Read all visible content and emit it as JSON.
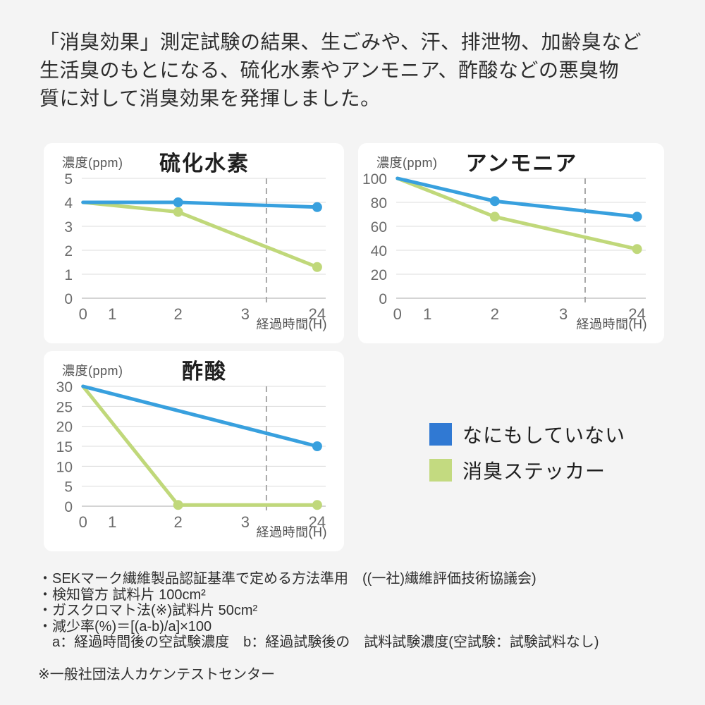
{
  "header": {
    "lines": [
      "「消臭効果」測定試験の結果、生ごみや、汗、排泄物、加齢臭など",
      "生活臭のもとになる、硫化水素やアンモニア、酢酸などの悪臭物",
      "質に対して消臭効果を発揮しました。"
    ]
  },
  "colors": {
    "line_blue": "#38a0de",
    "line_green": "#c0d87a",
    "legend_blue": "#3079d3",
    "legend_green": "#c3da80",
    "grid": "#dcdcdc",
    "axis": "#c6c6c6",
    "dashed": "#a8a8a8",
    "card_background": "#ffffff",
    "page_background": "#f4f4f4"
  },
  "chart_data": [
    {
      "type": "line",
      "title": "硫化水素",
      "ylabel": "濃度(ppm)",
      "xlabel": "経過時間(H)",
      "x_ticks": [
        "0",
        "1",
        "2",
        "3",
        "24"
      ],
      "y_ticks": [
        5,
        4,
        3,
        2,
        1,
        0
      ],
      "ylim": [
        0,
        5
      ],
      "grid": true,
      "axis_break_between": [
        "3",
        "24"
      ],
      "series": [
        {
          "name": "なにもしていない",
          "color": "#38a0de",
          "x": [
            "0",
            "2",
            "24"
          ],
          "values": [
            4,
            4,
            3.8
          ]
        },
        {
          "name": "消臭ステッカー",
          "color": "#c0d87a",
          "x": [
            "0",
            "2",
            "24"
          ],
          "values": [
            4,
            3.6,
            1.3
          ]
        }
      ]
    },
    {
      "type": "line",
      "title": "アンモニア",
      "ylabel": "濃度(ppm)",
      "xlabel": "経過時間(H)",
      "x_ticks": [
        "0",
        "1",
        "2",
        "3",
        "24"
      ],
      "y_ticks": [
        100,
        80,
        60,
        40,
        20,
        0
      ],
      "ylim": [
        0,
        100
      ],
      "grid": true,
      "axis_break_between": [
        "3",
        "24"
      ],
      "series": [
        {
          "name": "なにもしていない",
          "color": "#38a0de",
          "x": [
            "0",
            "2",
            "24"
          ],
          "values": [
            100,
            81,
            68
          ]
        },
        {
          "name": "消臭ステッカー",
          "color": "#c0d87a",
          "x": [
            "0",
            "2",
            "24"
          ],
          "values": [
            100,
            68,
            41
          ]
        }
      ]
    },
    {
      "type": "line",
      "title": "酢酸",
      "ylabel": "濃度(ppm)",
      "xlabel": "経過時間(H)",
      "x_ticks": [
        "0",
        "1",
        "2",
        "3",
        "24"
      ],
      "y_ticks": [
        30,
        25,
        20,
        15,
        10,
        5,
        0
      ],
      "ylim": [
        0,
        30
      ],
      "grid": true,
      "axis_break_between": [
        "3",
        "24"
      ],
      "series": [
        {
          "name": "なにもしていない",
          "color": "#38a0de",
          "x": [
            "0",
            "24"
          ],
          "values": [
            30,
            15
          ]
        },
        {
          "name": "消臭ステッカー",
          "color": "#c0d87a",
          "x": [
            "0",
            "2",
            "24"
          ],
          "values": [
            30,
            0.3,
            0.3
          ]
        }
      ]
    }
  ],
  "legend": {
    "items": [
      {
        "label": "なにもしていない",
        "color": "#3079d3"
      },
      {
        "label": "消臭ステッカー",
        "color": "#c3da80"
      }
    ]
  },
  "footnotes": {
    "lines": [
      "・SEKマーク繊維製品認証基準で定める方法準用　((一社)繊維評価技術協議会)",
      "・検知管方 試料片 100cm²",
      "・ガスクロマト法(※)試料片 50cm²",
      "・減少率(%)＝[(a-b)/a]×100",
      "　a：経過時間後の空試験濃度　b：経過試験後の　試料試験濃度(空試験：試験試料なし)"
    ],
    "source": "※一般社団法人カケンテストセンター"
  }
}
